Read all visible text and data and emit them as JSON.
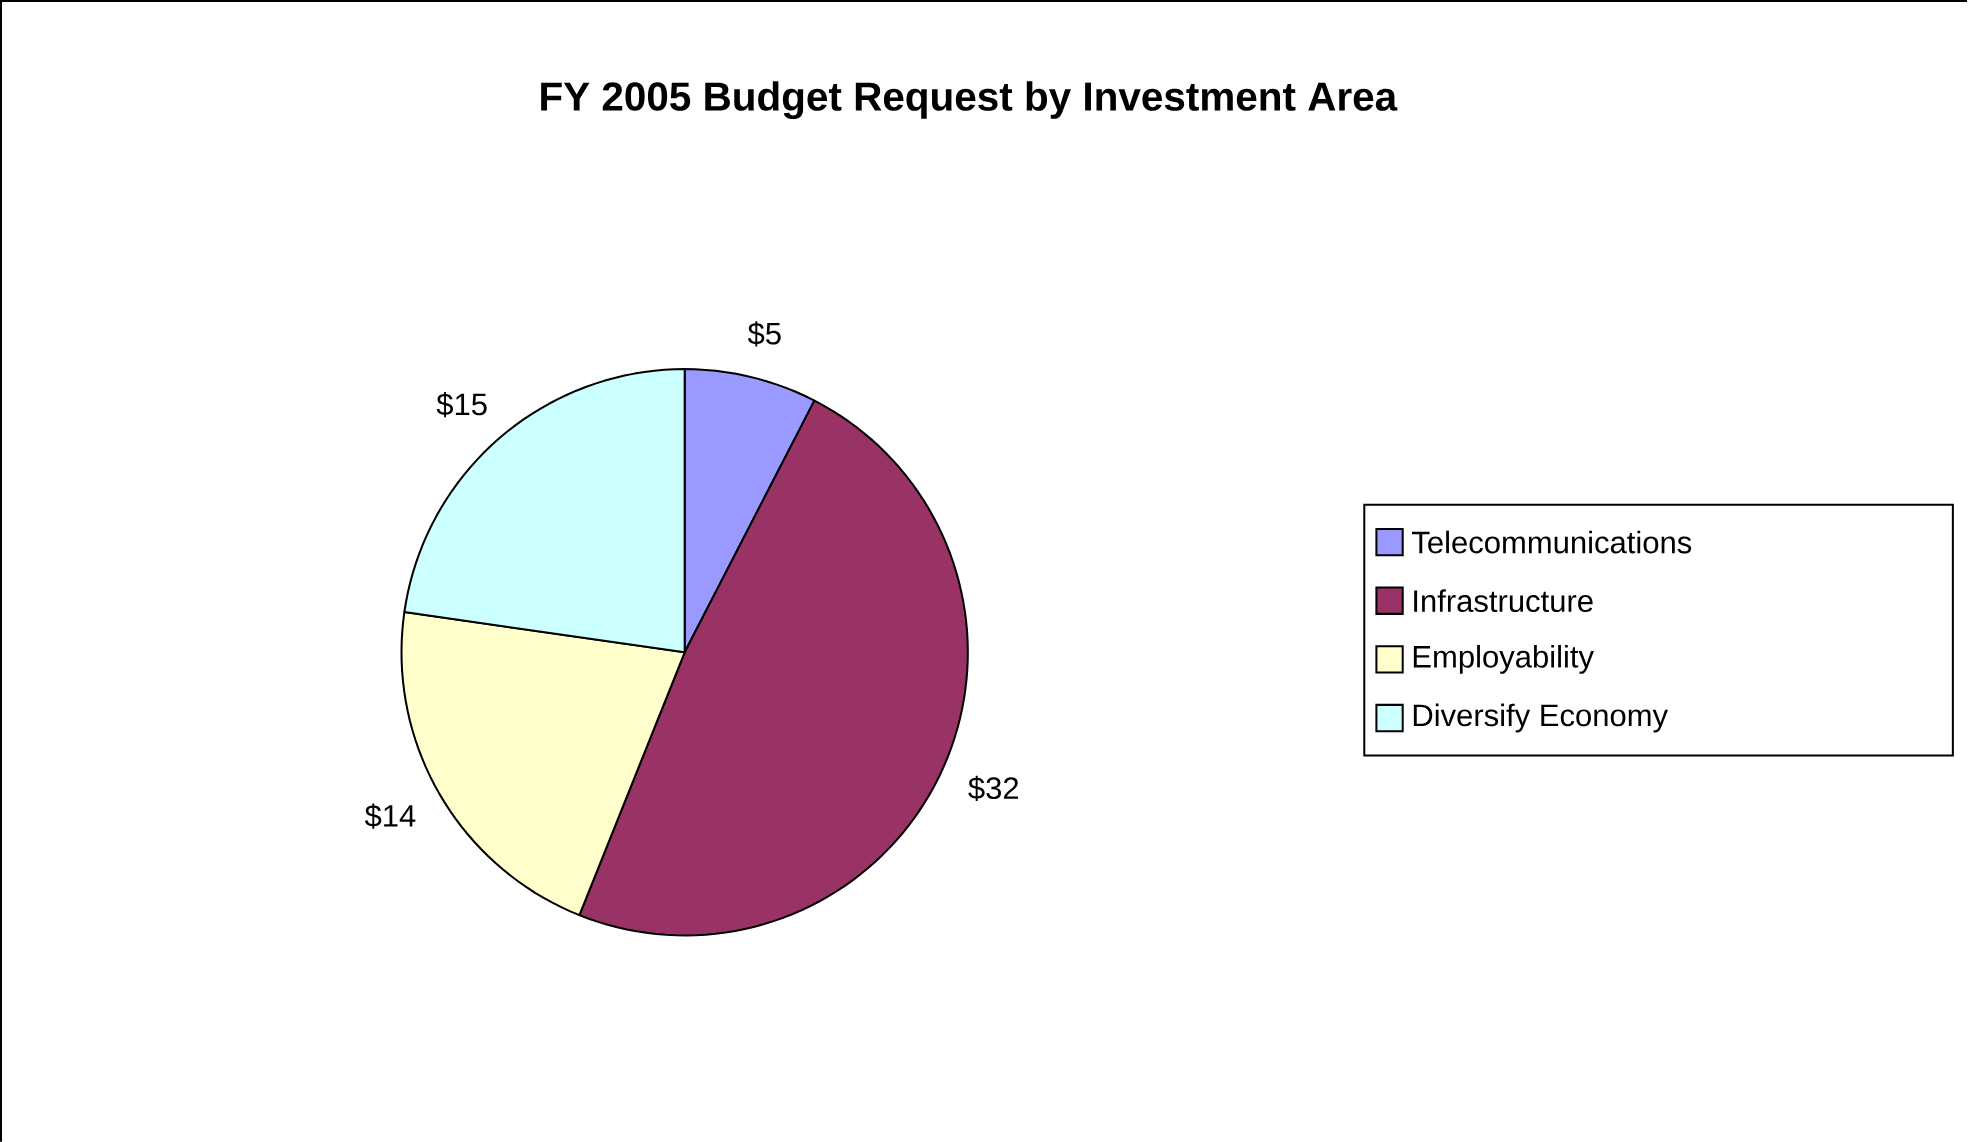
{
  "chart_data": {
    "type": "pie",
    "title": "FY 2005 Budget Request by Investment Area",
    "categories": [
      "Telecommunications",
      "Infrastructure",
      "Employability",
      "Diversify Economy"
    ],
    "values": [
      5,
      32,
      14,
      15
    ],
    "value_labels": [
      "$5",
      "$32",
      "$14",
      "$15"
    ],
    "colors": [
      "#9999ff",
      "#993366",
      "#ffffcc",
      "#ccffff"
    ],
    "legend": "right"
  }
}
